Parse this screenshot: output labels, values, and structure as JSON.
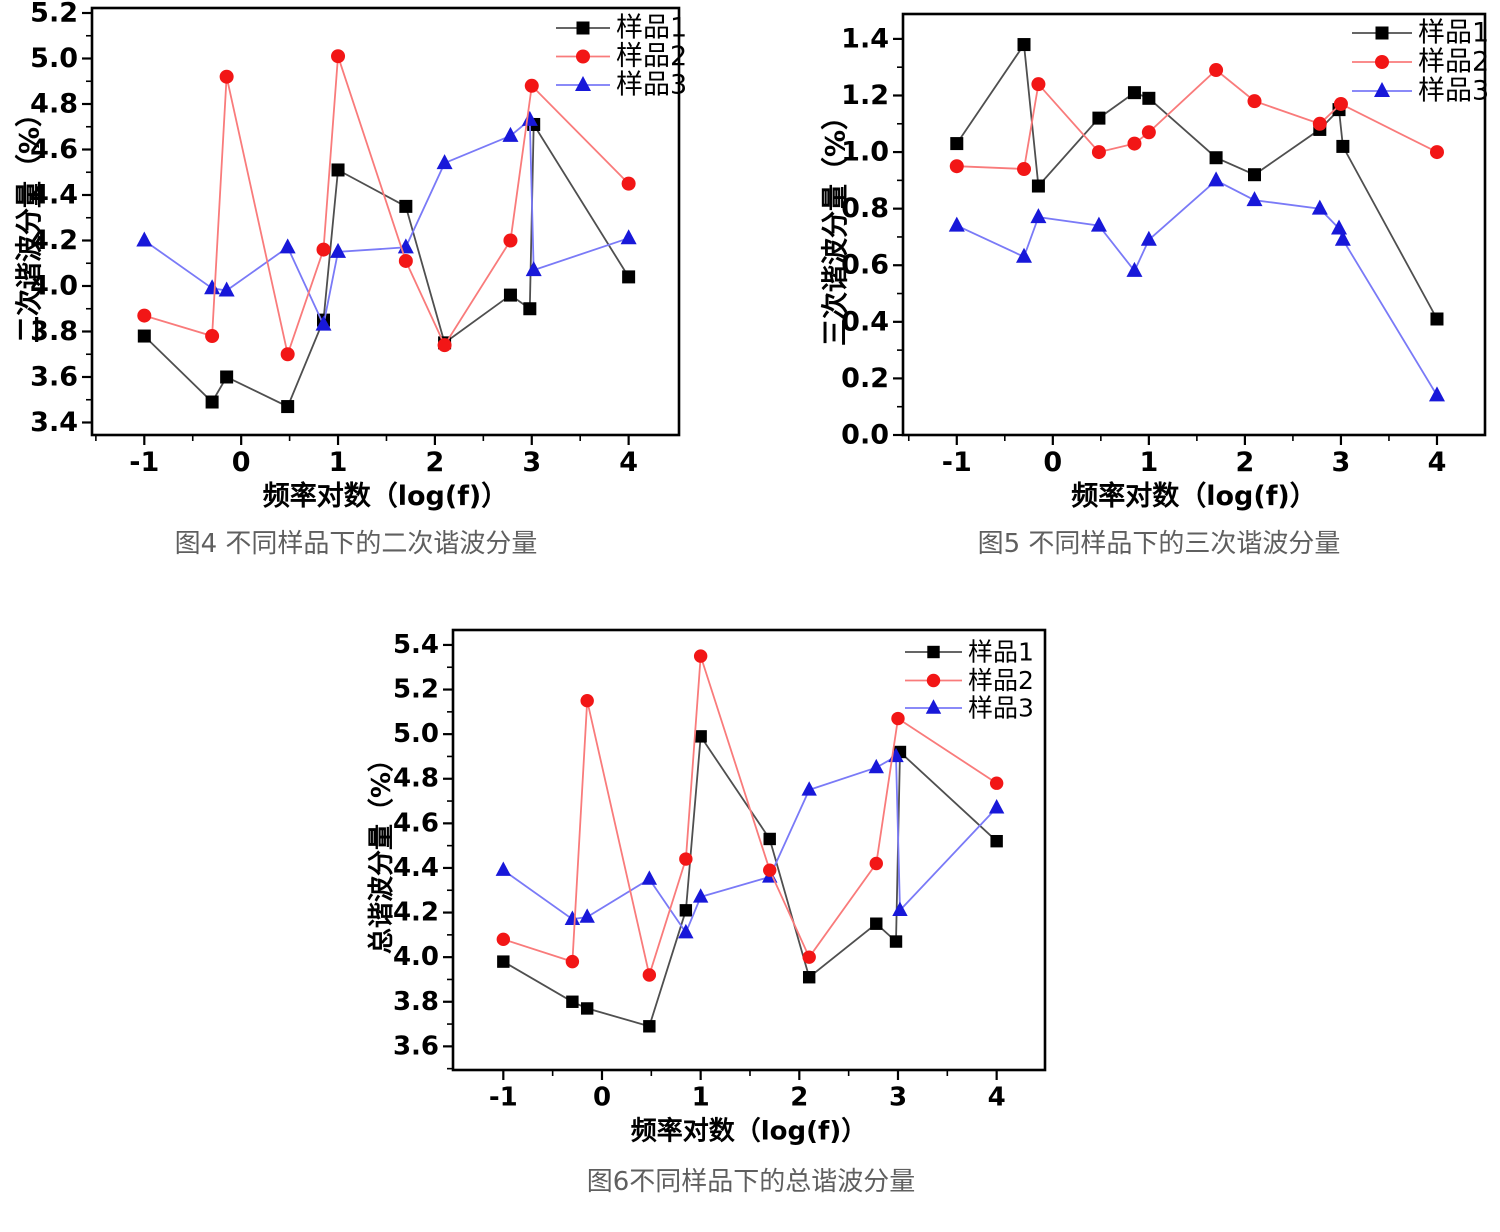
{
  "colors": {
    "background": "#ffffff",
    "axis": "#000000",
    "tick_label": "#000000",
    "legend_text": "#000000",
    "caption_text": "#5f5f5f",
    "series": {
      "sample1": {
        "marker": "#000000",
        "line": "#4f4f4f"
      },
      "sample2": {
        "marker": "#f21616",
        "line": "#f97b7b"
      },
      "sample3": {
        "marker": "#1818d9",
        "line": "#7a7af7"
      }
    }
  },
  "chart_data": [
    {
      "type": "line",
      "figure_id": "图4",
      "caption": "图4 不同样品下的二次谐波分量",
      "xlabel": "频率对数（log(f)）",
      "ylabel": "二次谐波分量（%）",
      "xlim": [
        -1.54,
        4.52
      ],
      "ylim": [
        3.345,
        5.222
      ],
      "xticks": [
        -1,
        0,
        1,
        2,
        3,
        4
      ],
      "yticks": [
        3.4,
        3.6,
        3.8,
        4.0,
        4.2,
        4.4,
        4.6,
        4.8,
        5.0,
        5.2
      ],
      "grid": false,
      "legend_position": "top-right",
      "legend": [
        "样品1",
        "样品2",
        "样品3"
      ],
      "series": [
        {
          "name": "样品1",
          "marker": "square",
          "color_key": "sample1",
          "x": [
            -1,
            -0.3,
            -0.15,
            0.48,
            0.85,
            1,
            1.7,
            2.1,
            2.78,
            2.98,
            3.02,
            4
          ],
          "y": [
            3.78,
            3.49,
            3.6,
            3.47,
            3.85,
            4.51,
            4.35,
            3.75,
            3.96,
            3.9,
            4.71,
            4.04
          ]
        },
        {
          "name": "样品2",
          "marker": "circle",
          "color_key": "sample2",
          "x": [
            -1,
            -0.3,
            -0.15,
            0.48,
            0.85,
            1,
            1.7,
            2.1,
            2.78,
            3,
            4
          ],
          "y": [
            3.87,
            3.78,
            4.92,
            3.7,
            4.16,
            5.01,
            4.11,
            3.74,
            4.2,
            4.88,
            4.45
          ]
        },
        {
          "name": "样品3",
          "marker": "triangle",
          "color_key": "sample3",
          "x": [
            -1,
            -0.3,
            -0.15,
            0.48,
            0.85,
            1,
            1.7,
            2.1,
            2.78,
            2.98,
            3.02,
            4
          ],
          "y": [
            4.2,
            3.99,
            3.98,
            4.17,
            3.83,
            4.15,
            4.17,
            4.54,
            4.66,
            4.73,
            4.07,
            4.21
          ]
        }
      ]
    },
    {
      "type": "line",
      "figure_id": "图5",
      "caption": "图5 不同样品下的三次谐波分量",
      "xlabel": "频率对数（log(f)）",
      "ylabel": "三次谐波分量（%）",
      "xlim": [
        -1.56,
        4.5
      ],
      "ylim": [
        0.0,
        1.488
      ],
      "xticks": [
        -1,
        0,
        1,
        2,
        3,
        4
      ],
      "yticks": [
        0.0,
        0.2,
        0.4,
        0.6,
        0.8,
        1.0,
        1.2,
        1.4
      ],
      "grid": false,
      "legend_position": "top-right",
      "legend": [
        "样品1",
        "样品2",
        "样品3"
      ],
      "series": [
        {
          "name": "样品1",
          "marker": "square",
          "color_key": "sample1",
          "x": [
            -1,
            -0.3,
            -0.15,
            0.48,
            0.85,
            1,
            1.7,
            2.1,
            2.78,
            2.98,
            3.02,
            4
          ],
          "y": [
            1.03,
            1.38,
            0.88,
            1.12,
            1.21,
            1.19,
            0.98,
            0.92,
            1.08,
            1.15,
            1.02,
            0.41
          ]
        },
        {
          "name": "样品2",
          "marker": "circle",
          "color_key": "sample2",
          "x": [
            -1,
            -0.3,
            -0.15,
            0.48,
            0.85,
            1,
            1.7,
            2.1,
            2.78,
            3,
            4
          ],
          "y": [
            0.95,
            0.94,
            1.24,
            1.0,
            1.03,
            1.07,
            1.29,
            1.18,
            1.1,
            1.17,
            1.0
          ]
        },
        {
          "name": "样品3",
          "marker": "triangle",
          "color_key": "sample3",
          "x": [
            -1,
            -0.3,
            -0.15,
            0.48,
            0.85,
            1,
            1.7,
            2.1,
            2.78,
            2.98,
            3.02,
            4
          ],
          "y": [
            0.74,
            0.63,
            0.77,
            0.74,
            0.58,
            0.69,
            0.9,
            0.83,
            0.8,
            0.73,
            0.69,
            0.14
          ]
        }
      ]
    },
    {
      "type": "line",
      "figure_id": "图6",
      "caption": "图6不同样品下的总谐波分量",
      "xlabel": "频率对数（log(f)）",
      "ylabel": "总谐波分量（%）",
      "xlim": [
        -1.51,
        4.49
      ],
      "ylim": [
        3.494,
        5.467
      ],
      "xticks": [
        -1,
        0,
        1,
        2,
        3,
        4
      ],
      "yticks": [
        3.6,
        3.8,
        4.0,
        4.2,
        4.4,
        4.6,
        4.8,
        5.0,
        5.2,
        5.4
      ],
      "grid": false,
      "legend_position": "top-right",
      "legend": [
        "样品1",
        "样品2",
        "样品3"
      ],
      "series": [
        {
          "name": "样品1",
          "marker": "square",
          "color_key": "sample1",
          "x": [
            -1,
            -0.3,
            -0.15,
            0.48,
            0.85,
            1,
            1.7,
            2.1,
            2.78,
            2.98,
            3.02,
            4
          ],
          "y": [
            3.98,
            3.8,
            3.77,
            3.69,
            4.21,
            4.99,
            4.53,
            3.91,
            4.15,
            4.07,
            4.92,
            4.52
          ]
        },
        {
          "name": "样品2",
          "marker": "circle",
          "color_key": "sample2",
          "x": [
            -1,
            -0.3,
            -0.15,
            0.48,
            0.85,
            1,
            1.7,
            2.1,
            2.78,
            3,
            4
          ],
          "y": [
            4.08,
            3.98,
            5.15,
            3.92,
            4.44,
            5.35,
            4.39,
            4.0,
            4.42,
            5.07,
            4.78
          ]
        },
        {
          "name": "样品3",
          "marker": "triangle",
          "color_key": "sample3",
          "x": [
            -1,
            -0.3,
            -0.15,
            0.48,
            0.85,
            1,
            1.7,
            2.1,
            2.78,
            2.98,
            3.02,
            4
          ],
          "y": [
            4.39,
            4.17,
            4.18,
            4.35,
            4.11,
            4.27,
            4.36,
            4.75,
            4.85,
            4.9,
            4.21,
            4.67
          ]
        }
      ]
    }
  ]
}
